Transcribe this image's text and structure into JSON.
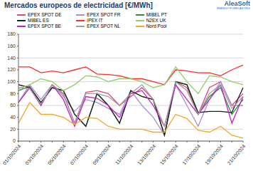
{
  "chart_data": {
    "type": "line",
    "title": "Mercados europeos de electricidad [€/MWh]",
    "annotations": [
      "AleaSoft",
      "ENERGY FORECASTING"
    ],
    "categories": [
      "01/10/2024",
      null,
      "03/10/2024",
      null,
      "05/10/2024",
      null,
      "07/10/2024",
      null,
      "09/10/2024",
      null,
      "11/10/2024",
      null,
      "13/10/2024",
      null,
      "15/10/2024",
      null,
      "17/10/2024",
      null,
      "19/10/2024",
      null,
      "21/10/2024"
    ],
    "ylim": [
      0,
      180
    ],
    "yticks": [
      0,
      20,
      40,
      60,
      80,
      100,
      120,
      140,
      160,
      180
    ],
    "grid": true,
    "legend": "top",
    "series": [
      {
        "name": "EPEX SPOT DE",
        "color": "#e0457b",
        "values": [
          95,
          90,
          60,
          95,
          80,
          30,
          82,
          85,
          80,
          60,
          75,
          90,
          70,
          10,
          100,
          90,
          45,
          90,
          100,
          60,
          80
        ]
      },
      {
        "name": "EPEX SPOT FR",
        "color": "#a98ed6",
        "values": [
          65,
          95,
          70,
          95,
          75,
          50,
          70,
          65,
          55,
          45,
          85,
          60,
          40,
          10,
          95,
          60,
          25,
          70,
          100,
          60,
          60
        ]
      },
      {
        "name": "MIBEL PT",
        "color": "#2e8b3a",
        "values": [
          85,
          92,
          65,
          90,
          85,
          45,
          25,
          80,
          60,
          30,
          85,
          75,
          70,
          10,
          100,
          95,
          45,
          75,
          90,
          45,
          70
        ]
      },
      {
        "name": "MIBEL ES",
        "color": "#1f1f1f",
        "values": [
          95,
          90,
          65,
          90,
          85,
          45,
          25,
          80,
          60,
          30,
          85,
          75,
          70,
          10,
          100,
          95,
          48,
          50,
          50,
          48,
          90
        ]
      },
      {
        "name": "IPEX IT",
        "color": "#ff2a2a",
        "values": [
          125,
          125,
          115,
          118,
          115,
          120,
          125,
          113,
          112,
          110,
          105,
          105,
          100,
          95,
          120,
          118,
          115,
          115,
          110,
          120,
          128
        ]
      },
      {
        "name": "N2EX UK",
        "color": "#8fcf6a",
        "values": [
          88,
          95,
          105,
          100,
          85,
          95,
          110,
          108,
          100,
          105,
          105,
          100,
          90,
          95,
          125,
          100,
          80,
          110,
          108,
          100,
          95
        ]
      },
      {
        "name": "EPEX SPOT BE",
        "color": "#c020c0",
        "values": [
          65,
          90,
          60,
          95,
          70,
          25,
          75,
          72,
          60,
          40,
          80,
          85,
          60,
          25,
          95,
          70,
          45,
          70,
          95,
          30,
          75
        ]
      },
      {
        "name": "EPEX SPOT NL",
        "color": "#a0a0a0",
        "values": [
          90,
          88,
          62,
          95,
          78,
          30,
          80,
          80,
          75,
          60,
          80,
          95,
          70,
          25,
          100,
          85,
          45,
          80,
          95,
          55,
          75
        ]
      },
      {
        "name": "Nord Pool",
        "color": "#f5a623",
        "values": [
          30,
          65,
          45,
          45,
          40,
          28,
          40,
          38,
          25,
          20,
          20,
          20,
          15,
          15,
          45,
          38,
          18,
          15,
          25,
          10,
          5
        ]
      }
    ]
  }
}
